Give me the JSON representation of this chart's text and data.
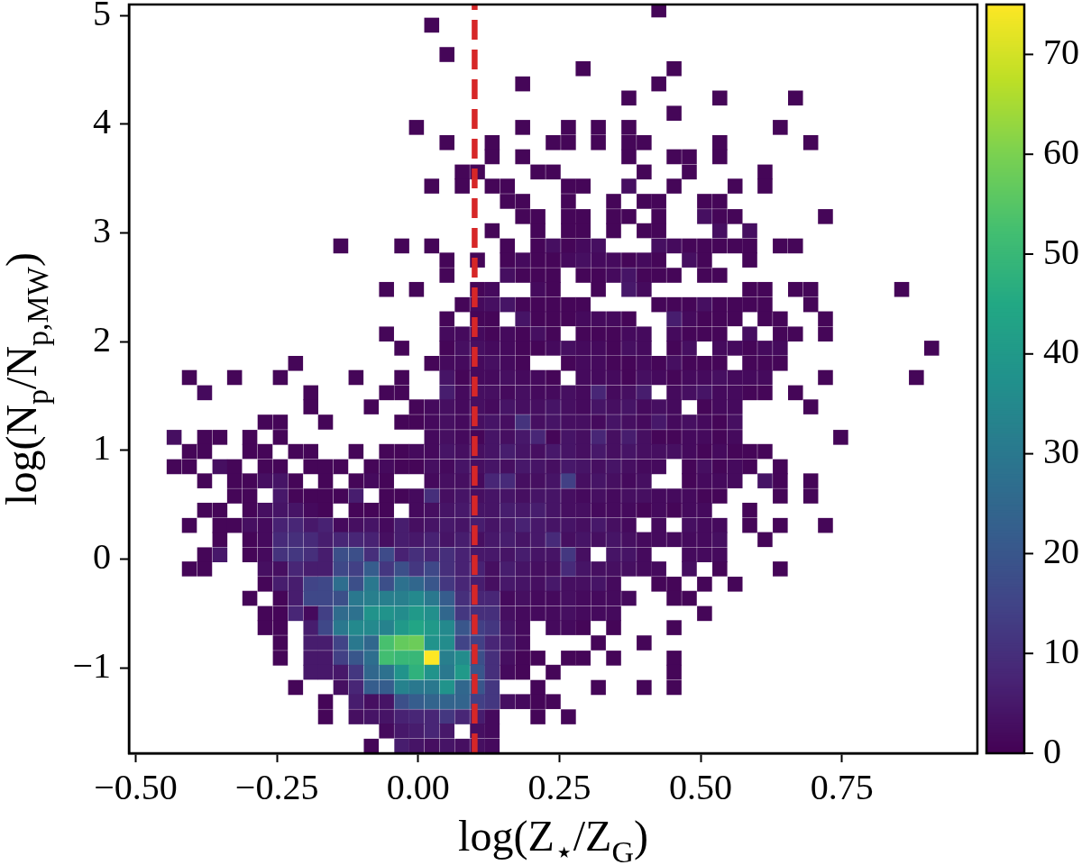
{
  "chart_data": {
    "type": "scatter",
    "marker": "square",
    "xlabel": "log(Z$_{⋆}$/Z$_{G}$)",
    "ylabel": "log(N$_{p}$/N$_{p,MW}$)",
    "xlim": [
      -0.512,
      0.99
    ],
    "ylim": [
      -1.785,
      5.1
    ],
    "xticks": [
      {
        "value": -0.5,
        "label": "−0.50"
      },
      {
        "value": -0.25,
        "label": "−0.25"
      },
      {
        "value": 0,
        "label": "0.00"
      },
      {
        "value": 0.25,
        "label": "0.25"
      },
      {
        "value": 0.5,
        "label": "0.50"
      },
      {
        "value": 0.75,
        "label": "0.75"
      }
    ],
    "yticks": [
      {
        "value": -1,
        "label": "−1"
      },
      0,
      1,
      2,
      3,
      4,
      5
    ],
    "clim": [
      0,
      75
    ],
    "cticks": [
      0,
      10,
      20,
      30,
      40,
      50,
      60,
      70
    ],
    "ref_lines": [
      {
        "axis": "x",
        "value": 0.1,
        "color": "#d62728",
        "line_style": "dashed"
      }
    ],
    "x": [
      0.426,
      0.024,
      0.051,
      0.292,
      0.453,
      0.185,
      0.426,
      0.373,
      0.534,
      0.668,
      0.453,
      -0.003,
      0.185,
      0.266,
      0.319,
      0.373,
      0.641,
      0.051,
      0.131,
      0.239,
      0.266,
      0.319,
      0.373,
      0.4,
      0.534,
      0.695,
      0.131,
      0.185,
      0.373,
      0.453,
      0.48,
      0.534,
      0.078,
      0.105,
      0.212,
      0.239,
      0.4,
      0.48,
      0.614,
      0.024,
      0.078,
      0.131,
      0.158,
      0.266,
      0.292,
      0.373,
      0.453,
      0.561,
      0.614,
      0.158,
      0.185,
      0.266,
      0.346,
      0.4,
      0.426,
      0.507,
      0.534,
      0.185,
      0.212,
      0.266,
      0.292,
      0.346,
      0.373,
      0.426,
      0.507,
      0.534,
      0.561,
      0.721,
      0.131,
      0.212,
      0.266,
      0.292,
      0.346,
      0.4,
      0.426,
      0.534,
      0.587,
      -0.137,
      -0.029,
      0.024,
      0.158,
      0.212,
      0.239,
      0.266,
      0.292,
      0.319,
      0.426,
      0.453,
      0.48,
      0.507,
      0.534,
      0.561,
      0.587,
      0.641,
      0.668,
      0.051,
      0.105,
      0.158,
      0.185,
      0.212,
      0.239,
      0.266,
      0.292,
      0.319,
      0.346,
      0.373,
      0.4,
      0.426,
      0.48,
      0.507,
      0.587,
      0.051,
      0.158,
      0.185,
      0.212,
      0.239,
      0.292,
      0.319,
      0.346,
      0.373,
      0.4,
      0.426,
      0.453,
      0.507,
      0.534,
      -0.056,
      -0.003,
      0.105,
      0.131,
      0.212,
      0.239,
      0.319,
      0.373,
      0.4,
      0.587,
      0.614,
      0.668,
      0.695,
      0.856,
      0.078,
      0.105,
      0.131,
      0.158,
      0.185,
      0.212,
      0.239,
      0.266,
      0.292,
      0.426,
      0.453,
      0.48,
      0.507,
      0.534,
      0.561,
      0.587,
      0.614,
      0.695,
      0.051,
      0.105,
      0.131,
      0.185,
      0.212,
      0.239,
      0.266,
      0.292,
      0.319,
      0.346,
      0.373,
      0.453,
      0.48,
      0.507,
      0.534,
      0.561,
      0.614,
      0.641,
      0.721,
      -0.056,
      0.051,
      0.078,
      0.105,
      0.131,
      0.158,
      0.185,
      0.212,
      0.239,
      0.292,
      0.319,
      0.346,
      0.373,
      0.4,
      0.453,
      0.48,
      0.507,
      0.534,
      0.587,
      0.641,
      0.668,
      0.721,
      -0.029,
      0.051,
      0.078,
      0.105,
      0.131,
      0.158,
      0.185,
      0.212,
      0.239,
      0.266,
      0.292,
      0.319,
      0.346,
      0.373,
      0.4,
      0.453,
      0.48,
      0.534,
      0.561,
      0.587,
      0.614,
      0.641,
      0.909,
      -0.217,
      0.024,
      0.051,
      0.078,
      0.105,
      0.131,
      0.158,
      0.185,
      0.266,
      0.292,
      0.319,
      0.346,
      0.373,
      0.4,
      0.426,
      0.453,
      0.48,
      0.507,
      0.534,
      0.587,
      0.614,
      0.641,
      -0.405,
      -0.325,
      -0.244,
      -0.11,
      -0.029,
      0.051,
      0.078,
      0.105,
      0.131,
      0.158,
      0.185,
      0.212,
      0.239,
      0.292,
      0.319,
      0.346,
      0.373,
      0.4,
      0.426,
      0.453,
      0.48,
      0.507,
      0.534,
      0.561,
      0.587,
      0.614,
      0.721,
      0.882,
      -0.378,
      -0.19,
      -0.056,
      -0.029,
      0.051,
      0.078,
      0.105,
      0.131,
      0.158,
      0.185,
      0.212,
      0.239,
      0.266,
      0.292,
      0.319,
      0.346,
      0.373,
      0.4,
      0.453,
      0.48,
      0.507,
      0.534,
      0.561,
      0.587,
      0.614,
      0.668,
      -0.19,
      -0.083,
      -0.003,
      0.024,
      0.051,
      0.078,
      0.105,
      0.131,
      0.158,
      0.185,
      0.212,
      0.239,
      0.266,
      0.292,
      0.319,
      0.346,
      0.373,
      0.4,
      0.426,
      0.453,
      0.507,
      0.534,
      0.561,
      0.695,
      -0.271,
      -0.244,
      -0.164,
      -0.029,
      -0.003,
      0.024,
      0.051,
      0.078,
      0.105,
      0.131,
      0.158,
      0.185,
      0.212,
      0.239,
      0.266,
      0.292,
      0.319,
      0.346,
      0.373,
      0.4,
      0.426,
      0.453,
      0.48,
      0.507,
      0.534,
      0.561,
      -0.432,
      -0.378,
      -0.351,
      -0.298,
      -0.244,
      0.024,
      0.051,
      0.078,
      0.105,
      0.131,
      0.158,
      0.185,
      0.212,
      0.239,
      0.266,
      0.292,
      0.319,
      0.346,
      0.373,
      0.4,
      0.426,
      0.453,
      0.48,
      0.507,
      0.534,
      0.561,
      0.748,
      -0.405,
      -0.378,
      -0.298,
      -0.271,
      -0.217,
      -0.19,
      -0.11,
      -0.056,
      -0.029,
      -0.003,
      0.024,
      0.051,
      0.078,
      0.105,
      0.131,
      0.158,
      0.185,
      0.212,
      0.239,
      0.266,
      0.292,
      0.319,
      0.346,
      0.373,
      0.4,
      0.426,
      0.453,
      0.48,
      0.507,
      0.534,
      0.561,
      0.587,
      0.614,
      -0.432,
      -0.405,
      -0.351,
      -0.325,
      -0.271,
      -0.244,
      -0.19,
      -0.164,
      -0.137,
      -0.083,
      -0.056,
      -0.029,
      -0.003,
      0.024,
      0.051,
      0.078,
      0.105,
      0.131,
      0.158,
      0.185,
      0.212,
      0.239,
      0.266,
      0.292,
      0.319,
      0.346,
      0.373,
      0.4,
      0.426,
      0.48,
      0.507,
      0.534,
      0.561,
      0.587,
      0.641,
      -0.378,
      -0.325,
      -0.298,
      -0.271,
      -0.244,
      -0.217,
      -0.164,
      -0.11,
      -0.083,
      -0.056,
      0.024,
      0.051,
      0.078,
      0.105,
      0.131,
      0.158,
      0.185,
      0.212,
      0.239,
      0.266,
      0.292,
      0.319,
      0.346,
      0.373,
      0.4,
      0.48,
      0.507,
      0.534,
      0.561,
      0.614,
      0.641,
      0.695,
      -0.325,
      -0.298,
      -0.244,
      -0.217,
      -0.19,
      -0.164,
      -0.137,
      -0.11,
      -0.056,
      -0.029,
      -0.003,
      0.024,
      0.051,
      0.078,
      0.105,
      0.131,
      0.158,
      0.185,
      0.212,
      0.239,
      0.266,
      0.292,
      0.319,
      0.346,
      0.373,
      0.4,
      0.426,
      0.453,
      0.48,
      0.507,
      0.534,
      0.641,
      0.695,
      -0.378,
      -0.351,
      -0.298,
      -0.271,
      -0.244,
      -0.217,
      -0.19,
      -0.164,
      -0.11,
      -0.083,
      -0.056,
      -0.003,
      0.024,
      0.051,
      0.078,
      0.105,
      0.131,
      0.158,
      0.185,
      0.212,
      0.239,
      0.266,
      0.292,
      0.319,
      0.346,
      0.373,
      0.4,
      0.426,
      0.453,
      0.48,
      0.507,
      0.587,
      -0.405,
      -0.351,
      -0.325,
      -0.298,
      -0.271,
      -0.244,
      -0.217,
      -0.19,
      -0.164,
      -0.137,
      -0.11,
      -0.083,
      -0.056,
      -0.029,
      -0.003,
      0.024,
      0.051,
      0.078,
      0.105,
      0.131,
      0.158,
      0.185,
      0.212,
      0.239,
      0.266,
      0.292,
      0.319,
      0.346,
      0.373,
      0.426,
      0.48,
      0.507,
      0.534,
      0.587,
      0.641,
      0.721,
      -0.351,
      -0.298,
      -0.271,
      -0.244,
      -0.217,
      -0.19,
      -0.164,
      -0.137,
      -0.11,
      -0.083,
      -0.056,
      -0.029,
      -0.003,
      0.024,
      0.051,
      0.078,
      0.105,
      0.131,
      0.158,
      0.185,
      0.212,
      0.239,
      0.266,
      0.292,
      0.319,
      0.346,
      0.373,
      0.4,
      0.426,
      0.453,
      0.48,
      0.507,
      0.534,
      0.614,
      -0.378,
      -0.351,
      -0.298,
      -0.271,
      -0.244,
      -0.217,
      -0.19,
      -0.164,
      -0.137,
      -0.11,
      -0.083,
      -0.056,
      -0.029,
      -0.003,
      0.024,
      0.051,
      0.078,
      0.105,
      0.131,
      0.158,
      0.185,
      0.212,
      0.239,
      0.266,
      0.292,
      0.346,
      0.373,
      0.4,
      0.48,
      0.507,
      0.534,
      -0.405,
      -0.378,
      -0.271,
      -0.244,
      -0.217,
      -0.19,
      -0.164,
      -0.137,
      -0.11,
      -0.083,
      -0.056,
      -0.029,
      -0.003,
      0.024,
      0.051,
      0.078,
      0.105,
      0.131,
      0.158,
      0.185,
      0.212,
      0.239,
      0.266,
      0.292,
      0.319,
      0.346,
      0.373,
      0.4,
      0.426,
      0.48,
      0.534,
      0.641,
      -0.271,
      -0.244,
      -0.217,
      -0.19,
      -0.164,
      -0.137,
      -0.11,
      -0.083,
      -0.056,
      -0.029,
      -0.003,
      0.024,
      0.051,
      0.078,
      0.105,
      0.131,
      0.158,
      0.185,
      0.212,
      0.239,
      0.266,
      0.292,
      0.319,
      0.346,
      0.426,
      0.453,
      0.507,
      0.561,
      -0.298,
      -0.244,
      -0.217,
      -0.19,
      -0.164,
      -0.137,
      -0.11,
      -0.083,
      -0.056,
      -0.029,
      -0.003,
      0.024,
      0.051,
      0.078,
      0.105,
      0.131,
      0.158,
      0.185,
      0.212,
      0.239,
      0.266,
      0.292,
      0.319,
      0.346,
      0.373,
      0.453,
      0.48,
      -0.271,
      -0.244,
      -0.217,
      -0.19,
      -0.164,
      -0.137,
      -0.11,
      -0.083,
      -0.056,
      -0.029,
      -0.003,
      0.024,
      0.051,
      0.078,
      0.105,
      0.131,
      0.158,
      0.185,
      0.212,
      0.239,
      0.266,
      0.292,
      0.319,
      0.346,
      0.507,
      -0.271,
      -0.244,
      -0.19,
      -0.164,
      -0.137,
      -0.11,
      -0.083,
      -0.056,
      -0.029,
      -0.003,
      0.024,
      0.051,
      0.078,
      0.105,
      0.131,
      0.158,
      0.185,
      0.239,
      0.266,
      0.292,
      0.346,
      0.453,
      -0.244,
      -0.19,
      -0.164,
      -0.137,
      -0.11,
      -0.083,
      -0.056,
      -0.029,
      -0.003,
      0.024,
      0.051,
      0.078,
      0.105,
      0.131,
      0.158,
      0.185,
      0.319,
      0.4,
      -0.244,
      -0.19,
      -0.164,
      -0.137,
      -0.11,
      -0.083,
      -0.056,
      -0.029,
      -0.003,
      0.024,
      0.051,
      0.078,
      0.105,
      0.131,
      0.158,
      0.185,
      0.212,
      0.266,
      0.292,
      0.346,
      0.453,
      -0.19,
      -0.164,
      -0.137,
      -0.11,
      -0.083,
      -0.056,
      -0.029,
      -0.003,
      0.024,
      0.051,
      0.078,
      0.105,
      0.131,
      0.158,
      0.185,
      0.239,
      0.453,
      -0.217,
      -0.137,
      -0.11,
      -0.083,
      -0.056,
      -0.029,
      -0.003,
      0.024,
      0.051,
      0.078,
      0.105,
      0.131,
      0.212,
      0.319,
      0.4,
      0.453,
      -0.164,
      -0.11,
      -0.083,
      -0.056,
      -0.029,
      -0.003,
      0.024,
      0.051,
      0.078,
      0.105,
      0.131,
      0.158,
      0.185,
      0.212,
      0.239,
      -0.164,
      -0.11,
      -0.083,
      -0.056,
      -0.029,
      -0.003,
      0.024,
      0.051,
      0.078,
      0.105,
      0.131,
      0.212,
      0.266,
      -0.056,
      -0.029,
      -0.003,
      0.024,
      0.051,
      0.105,
      0.131,
      -0.083,
      -0.029,
      -0.003,
      0.024,
      0.051,
      0.078,
      0.105,
      0.131
    ],
    "values": [
      5.05,
      4.91,
      4.64,
      4.51,
      4.51,
      4.37,
      4.37,
      4.24,
      4.24,
      4.24,
      4.1,
      3.97,
      3.97,
      3.97,
      3.97,
      3.97,
      3.97,
      3.83,
      3.83,
      3.83,
      3.83,
      3.83,
      3.83,
      3.83,
      3.83,
      3.83,
      3.7,
      3.7,
      3.7,
      3.7,
      3.7,
      3.7,
      3.56,
      3.56,
      3.56,
      3.56,
      3.56,
      3.56,
      3.56,
      3.43,
      3.43,
      3.43,
      3.43,
      3.43,
      3.43,
      3.43,
      3.43,
      3.43,
      3.43,
      3.29,
      3.29,
      3.29,
      3.29,
      3.29,
      3.29,
      3.29,
      3.29,
      3.15,
      3.15,
      3.15,
      3.15,
      3.15,
      3.15,
      3.15,
      3.15,
      3.15,
      3.15,
      3.15,
      3.02,
      3.02,
      3.02,
      3.02,
      3.02,
      3.02,
      3.02,
      3.02,
      3.02,
      2.88,
      2.88,
      2.88,
      2.88,
      2.88,
      2.88,
      2.88,
      2.88,
      2.88,
      2.88,
      2.88,
      2.88,
      2.88,
      2.88,
      2.88,
      2.88,
      2.88,
      2.88,
      2.75,
      2.75,
      2.75,
      2.75,
      2.75,
      2.75,
      2.75,
      2.75,
      2.75,
      2.75,
      2.75,
      2.75,
      2.75,
      2.75,
      2.75,
      2.75,
      2.61,
      2.61,
      2.61,
      2.61,
      2.61,
      2.61,
      2.61,
      2.61,
      2.61,
      2.61,
      2.61,
      2.61,
      2.61,
      2.61,
      2.48,
      2.48,
      2.48,
      2.48,
      2.48,
      2.48,
      2.48,
      2.48,
      2.48,
      2.48,
      2.48,
      2.48,
      2.48,
      2.48,
      2.34,
      2.34,
      2.34,
      2.34,
      2.34,
      2.34,
      2.34,
      2.34,
      2.34,
      2.34,
      2.34,
      2.34,
      2.34,
      2.34,
      2.34,
      2.34,
      2.34,
      2.34,
      2.21,
      2.21,
      2.21,
      2.21,
      2.21,
      2.21,
      2.21,
      2.21,
      2.21,
      2.21,
      2.21,
      2.21,
      2.21,
      2.21,
      2.21,
      2.21,
      2.21,
      2.21,
      2.21,
      2.07,
      2.07,
      2.07,
      2.07,
      2.07,
      2.07,
      2.07,
      2.07,
      2.07,
      2.07,
      2.07,
      2.07,
      2.07,
      2.07,
      2.07,
      2.07,
      2.07,
      2.07,
      2.07,
      2.07,
      2.07,
      2.07,
      1.94,
      1.94,
      1.94,
      1.94,
      1.94,
      1.94,
      1.94,
      1.94,
      1.94,
      1.94,
      1.94,
      1.94,
      1.94,
      1.94,
      1.94,
      1.94,
      1.94,
      1.94,
      1.94,
      1.94,
      1.94,
      1.94,
      1.94,
      1.8,
      1.8,
      1.8,
      1.8,
      1.8,
      1.8,
      1.8,
      1.8,
      1.8,
      1.8,
      1.8,
      1.8,
      1.8,
      1.8,
      1.8,
      1.8,
      1.8,
      1.8,
      1.8,
      1.8,
      1.8,
      1.8,
      1.67,
      1.67,
      1.67,
      1.67,
      1.67,
      1.67,
      1.67,
      1.67,
      1.67,
      1.67,
      1.67,
      1.67,
      1.67,
      1.67,
      1.67,
      1.67,
      1.67,
      1.67,
      1.67,
      1.67,
      1.67,
      1.67,
      1.67,
      1.67,
      1.67,
      1.67,
      1.67,
      1.67,
      1.53,
      1.53,
      1.53,
      1.53,
      1.53,
      1.53,
      1.53,
      1.53,
      1.53,
      1.53,
      1.53,
      1.53,
      1.53,
      1.53,
      1.53,
      1.53,
      1.53,
      1.53,
      1.53,
      1.53,
      1.53,
      1.53,
      1.53,
      1.53,
      1.53,
      1.53,
      1.4,
      1.4,
      1.4,
      1.4,
      1.4,
      1.4,
      1.4,
      1.4,
      1.4,
      1.4,
      1.4,
      1.4,
      1.4,
      1.4,
      1.4,
      1.4,
      1.4,
      1.4,
      1.4,
      1.4,
      1.4,
      1.4,
      1.4,
      1.4,
      1.26,
      1.26,
      1.26,
      1.26,
      1.26,
      1.26,
      1.26,
      1.26,
      1.26,
      1.26,
      1.26,
      1.26,
      1.26,
      1.26,
      1.26,
      1.26,
      1.26,
      1.26,
      1.26,
      1.26,
      1.26,
      1.26,
      1.26,
      1.26,
      1.26,
      1.26,
      1.12,
      1.12,
      1.12,
      1.12,
      1.12,
      1.12,
      1.12,
      1.12,
      1.12,
      1.12,
      1.12,
      1.12,
      1.12,
      1.12,
      1.12,
      1.12,
      1.12,
      1.12,
      1.12,
      1.12,
      1.12,
      1.12,
      1.12,
      1.12,
      1.12,
      1.12,
      1.12,
      0.99,
      0.99,
      0.99,
      0.99,
      0.99,
      0.99,
      0.99,
      0.99,
      0.99,
      0.99,
      0.99,
      0.99,
      0.99,
      0.99,
      0.99,
      0.99,
      0.99,
      0.99,
      0.99,
      0.99,
      0.99,
      0.99,
      0.99,
      0.99,
      0.99,
      0.99,
      0.99,
      0.99,
      0.99,
      0.99,
      0.99,
      0.99,
      0.99,
      0.85,
      0.85,
      0.85,
      0.85,
      0.85,
      0.85,
      0.85,
      0.85,
      0.85,
      0.85,
      0.85,
      0.85,
      0.85,
      0.85,
      0.85,
      0.85,
      0.85,
      0.85,
      0.85,
      0.85,
      0.85,
      0.85,
      0.85,
      0.85,
      0.85,
      0.85,
      0.85,
      0.85,
      0.85,
      0.85,
      0.85,
      0.85,
      0.85,
      0.85,
      0.85,
      0.72,
      0.72,
      0.72,
      0.72,
      0.72,
      0.72,
      0.72,
      0.72,
      0.72,
      0.72,
      0.72,
      0.72,
      0.72,
      0.72,
      0.72,
      0.72,
      0.72,
      0.72,
      0.72,
      0.72,
      0.72,
      0.72,
      0.72,
      0.72,
      0.72,
      0.72,
      0.72,
      0.72,
      0.72,
      0.72,
      0.72,
      0.72,
      0.58,
      0.58,
      0.58,
      0.58,
      0.58,
      0.58,
      0.58,
      0.58,
      0.58,
      0.58,
      0.58,
      0.58,
      0.58,
      0.58,
      0.58,
      0.58,
      0.58,
      0.58,
      0.58,
      0.58,
      0.58,
      0.58,
      0.58,
      0.58,
      0.58,
      0.58,
      0.58,
      0.58,
      0.58,
      0.58,
      0.58,
      0.58,
      0.58,
      0.45,
      0.45,
      0.45,
      0.45,
      0.45,
      0.45,
      0.45,
      0.45,
      0.45,
      0.45,
      0.45,
      0.45,
      0.45,
      0.45,
      0.45,
      0.45,
      0.45,
      0.45,
      0.45,
      0.45,
      0.45,
      0.45,
      0.45,
      0.45,
      0.45,
      0.45,
      0.45,
      0.45,
      0.45,
      0.45,
      0.45,
      0.45,
      0.31,
      0.31,
      0.31,
      0.31,
      0.31,
      0.31,
      0.31,
      0.31,
      0.31,
      0.31,
      0.31,
      0.31,
      0.31,
      0.31,
      0.31,
      0.31,
      0.31,
      0.31,
      0.31,
      0.31,
      0.31,
      0.31,
      0.31,
      0.31,
      0.31,
      0.31,
      0.31,
      0.31,
      0.31,
      0.31,
      0.31,
      0.31,
      0.31,
      0.31,
      0.31,
      0.31,
      0.18,
      0.18,
      0.18,
      0.18,
      0.18,
      0.18,
      0.18,
      0.18,
      0.18,
      0.18,
      0.18,
      0.18,
      0.18,
      0.18,
      0.18,
      0.18,
      0.18,
      0.18,
      0.18,
      0.18,
      0.18,
      0.18,
      0.18,
      0.18,
      0.18,
      0.18,
      0.18,
      0.18,
      0.18,
      0.18,
      0.18,
      0.18,
      0.18,
      0.18,
      0.04,
      0.04,
      0.04,
      0.04,
      0.04,
      0.04,
      0.04,
      0.04,
      0.04,
      0.04,
      0.04,
      0.04,
      0.04,
      0.04,
      0.04,
      0.04,
      0.04,
      0.04,
      0.04,
      0.04,
      0.04,
      0.04,
      0.04,
      0.04,
      0.04,
      0.04,
      0.04,
      0.04,
      0.04,
      0.04,
      0.04,
      -0.09,
      -0.09,
      -0.09,
      -0.09,
      -0.09,
      -0.09,
      -0.09,
      -0.09,
      -0.09,
      -0.09,
      -0.09,
      -0.09,
      -0.09,
      -0.09,
      -0.09,
      -0.09,
      -0.09,
      -0.09,
      -0.09,
      -0.09,
      -0.09,
      -0.09,
      -0.09,
      -0.09,
      -0.09,
      -0.09,
      -0.09,
      -0.09,
      -0.09,
      -0.09,
      -0.09,
      -0.09,
      -0.23,
      -0.23,
      -0.23,
      -0.23,
      -0.23,
      -0.23,
      -0.23,
      -0.23,
      -0.23,
      -0.23,
      -0.23,
      -0.23,
      -0.23,
      -0.23,
      -0.23,
      -0.23,
      -0.23,
      -0.23,
      -0.23,
      -0.23,
      -0.23,
      -0.23,
      -0.23,
      -0.23,
      -0.23,
      -0.23,
      -0.23,
      -0.23,
      -0.36,
      -0.36,
      -0.36,
      -0.36,
      -0.36,
      -0.36,
      -0.36,
      -0.36,
      -0.36,
      -0.36,
      -0.36,
      -0.36,
      -0.36,
      -0.36,
      -0.36,
      -0.36,
      -0.36,
      -0.36,
      -0.36,
      -0.36,
      -0.36,
      -0.36,
      -0.36,
      -0.36,
      -0.36,
      -0.36,
      -0.36,
      -0.5,
      -0.5,
      -0.5,
      -0.5,
      -0.5,
      -0.5,
      -0.5,
      -0.5,
      -0.5,
      -0.5,
      -0.5,
      -0.5,
      -0.5,
      -0.5,
      -0.5,
      -0.5,
      -0.5,
      -0.5,
      -0.5,
      -0.5,
      -0.5,
      -0.5,
      -0.5,
      -0.5,
      -0.5,
      -0.63,
      -0.63,
      -0.63,
      -0.63,
      -0.63,
      -0.63,
      -0.63,
      -0.63,
      -0.63,
      -0.63,
      -0.63,
      -0.63,
      -0.63,
      -0.63,
      -0.63,
      -0.63,
      -0.63,
      -0.63,
      -0.63,
      -0.63,
      -0.63,
      -0.63,
      -0.77,
      -0.77,
      -0.77,
      -0.77,
      -0.77,
      -0.77,
      -0.77,
      -0.77,
      -0.77,
      -0.77,
      -0.77,
      -0.77,
      -0.77,
      -0.77,
      -0.77,
      -0.77,
      -0.77,
      -0.77,
      -0.91,
      -0.91,
      -0.91,
      -0.91,
      -0.91,
      -0.91,
      -0.91,
      -0.91,
      -0.91,
      -0.91,
      -0.91,
      -0.91,
      -0.91,
      -0.91,
      -0.91,
      -0.91,
      -0.91,
      -0.91,
      -0.91,
      -0.91,
      -0.91,
      -1.04,
      -1.04,
      -1.04,
      -1.04,
      -1.04,
      -1.04,
      -1.04,
      -1.04,
      -1.04,
      -1.04,
      -1.04,
      -1.04,
      -1.04,
      -1.04,
      -1.04,
      -1.04,
      -1.04,
      -1.18,
      -1.18,
      -1.18,
      -1.18,
      -1.18,
      -1.18,
      -1.18,
      -1.18,
      -1.18,
      -1.18,
      -1.18,
      -1.18,
      -1.18,
      -1.18,
      -1.18,
      -1.18,
      -1.31,
      -1.31,
      -1.31,
      -1.31,
      -1.31,
      -1.31,
      -1.31,
      -1.31,
      -1.31,
      -1.31,
      -1.31,
      -1.31,
      -1.31,
      -1.31,
      -1.31,
      -1.45,
      -1.45,
      -1.45,
      -1.45,
      -1.45,
      -1.45,
      -1.45,
      -1.45,
      -1.45,
      -1.45,
      -1.45,
      -1.45,
      -1.45,
      -1.58,
      -1.58,
      -1.58,
      -1.58,
      -1.58,
      -1.58,
      -1.58,
      -1.72,
      -1.72,
      -1.72,
      -1.72,
      -1.72,
      -1.72,
      -1.72,
      -1.72
    ],
    "cvalues": [
      1,
      1,
      1,
      1,
      1,
      1,
      1,
      1,
      1,
      1,
      1,
      1,
      1,
      1,
      1,
      1,
      1,
      1,
      1,
      1,
      1,
      1,
      1,
      1,
      1,
      1,
      1,
      1,
      1,
      1,
      1,
      1,
      1,
      1,
      1,
      1,
      1,
      1,
      1,
      1,
      1,
      1,
      1,
      1,
      1,
      3,
      1,
      1,
      1,
      1,
      1,
      1,
      1,
      1,
      1,
      1,
      1,
      1,
      1,
      1,
      1,
      1,
      1,
      1,
      3,
      1,
      1,
      1,
      1,
      1,
      1,
      1,
      1,
      1,
      1,
      3,
      3,
      1,
      1,
      1,
      1,
      1,
      3,
      1,
      2,
      3,
      3,
      2,
      1,
      1,
      1,
      1,
      1,
      1,
      1,
      1,
      1,
      1,
      2,
      1,
      1,
      2,
      3,
      2,
      2,
      1,
      2,
      1,
      3,
      1,
      1,
      1,
      3,
      1,
      1,
      1,
      1,
      1,
      2,
      4,
      1,
      1,
      1,
      1,
      1,
      1,
      1,
      1,
      2,
      2,
      1,
      1,
      5,
      2,
      1,
      1,
      1,
      1,
      1,
      1,
      2,
      3,
      4,
      1,
      1,
      1,
      1,
      1,
      1,
      1,
      1,
      3,
      1,
      1,
      1,
      1,
      1,
      1,
      1,
      1,
      4,
      1,
      1,
      1,
      2,
      2,
      2,
      1,
      6,
      2,
      1,
      1,
      1,
      1,
      1,
      1,
      1,
      2,
      2,
      2,
      1,
      2,
      1,
      3,
      1,
      1,
      1,
      1,
      2,
      2,
      2,
      1,
      1,
      1,
      3,
      1,
      1,
      1,
      1,
      1,
      3,
      3,
      2,
      2,
      1,
      1,
      2,
      3,
      2,
      2,
      1,
      3,
      2,
      1,
      3,
      2,
      2,
      1,
      2,
      2,
      1,
      1,
      1,
      2,
      2,
      2,
      3,
      2,
      1,
      1,
      2,
      2,
      1,
      1,
      2,
      1,
      3,
      1,
      1,
      1,
      1,
      1,
      1,
      1,
      1,
      1,
      1,
      1,
      4,
      1,
      2,
      2,
      3,
      2,
      2,
      1,
      2,
      2,
      2,
      1,
      3,
      2,
      1,
      2,
      2,
      3,
      2,
      2,
      2,
      1,
      1,
      2,
      1,
      1,
      1,
      6,
      2,
      3,
      3,
      2,
      3,
      2,
      2,
      3,
      2,
      8,
      2,
      3,
      6,
      2,
      3,
      4,
      2,
      2,
      1,
      1,
      1,
      1,
      1,
      1,
      2,
      3,
      2,
      3,
      2,
      4,
      3,
      3,
      4,
      3,
      2,
      4,
      3,
      4,
      2,
      3,
      2,
      1,
      2,
      2,
      1,
      1,
      1,
      1,
      1,
      1,
      2,
      3,
      2,
      3,
      4,
      3,
      11,
      3,
      4,
      3,
      3,
      2,
      4,
      3,
      2,
      5,
      2,
      3,
      2,
      1,
      3,
      3,
      1,
      1,
      1,
      1,
      2,
      3,
      2,
      1,
      4,
      3,
      5,
      8,
      1,
      4,
      3,
      8,
      3,
      6,
      3,
      1,
      1,
      2,
      2,
      1,
      2,
      1,
      1,
      1,
      1,
      1,
      1,
      1,
      1,
      1,
      1,
      2,
      2,
      4,
      3,
      3,
      4,
      6,
      4,
      3,
      5,
      4,
      3,
      5,
      3,
      4,
      3,
      3,
      3,
      2,
      1,
      2,
      1,
      1,
      1,
      1,
      1,
      3,
      1,
      1,
      1,
      1,
      1,
      1,
      1,
      2,
      1,
      1,
      3,
      2,
      4,
      3,
      4,
      3,
      5,
      4,
      3,
      5,
      4,
      3,
      4,
      3,
      2,
      2,
      1,
      3,
      1,
      2,
      1,
      1,
      1,
      1,
      1,
      3,
      4,
      1,
      1,
      1,
      2,
      1,
      2,
      3,
      3,
      2,
      8,
      9,
      3,
      3,
      4,
      14,
      3,
      4,
      3,
      2,
      3,
      1,
      2,
      2,
      2,
      4,
      1,
      1,
      1,
      1,
      5,
      1,
      1,
      1,
      1,
      6,
      1,
      1,
      2,
      10,
      3,
      4,
      3,
      4,
      4,
      3,
      4,
      4,
      3,
      2,
      3,
      2,
      3,
      3,
      2,
      2,
      2,
      1,
      1,
      1,
      1,
      1,
      1,
      1,
      3,
      4,
      4,
      2,
      1,
      1,
      1,
      1,
      2,
      3,
      4,
      5,
      4,
      4,
      6,
      5,
      6,
      4,
      3,
      3,
      2,
      2,
      2,
      1,
      2,
      1,
      2,
      2,
      1,
      1,
      1,
      1,
      3,
      2,
      7,
      8,
      5,
      7,
      2,
      3,
      4,
      2,
      6,
      3,
      4,
      5,
      4,
      6,
      4,
      5,
      7,
      5,
      4,
      4,
      3,
      5,
      3,
      2,
      2,
      3,
      2,
      2,
      1,
      1,
      1,
      1,
      1,
      2,
      9,
      10,
      9,
      6,
      8,
      8,
      7,
      3,
      6,
      5,
      7,
      4,
      6,
      3,
      5,
      6,
      4,
      5,
      9,
      3,
      4,
      3,
      4,
      3,
      2,
      2,
      2,
      2,
      2,
      3,
      1,
      1,
      5,
      1,
      2,
      11,
      12,
      10,
      6,
      18,
      18,
      10,
      17,
      7,
      10,
      8,
      10,
      7,
      5,
      5,
      4,
      6,
      4,
      4,
      12,
      3,
      4,
      4,
      2,
      2,
      2,
      2,
      1,
      1,
      3,
      3,
      8,
      6,
      6,
      16,
      14,
      22,
      12,
      18,
      12,
      16,
      10,
      7,
      7,
      3,
      6,
      4,
      3,
      3,
      9,
      4,
      3,
      3,
      3,
      2,
      2,
      3,
      1,
      1,
      1,
      6,
      6,
      15,
      16,
      27,
      18,
      30,
      18,
      28,
      25,
      20,
      12,
      8,
      6,
      3,
      5,
      4,
      3,
      5,
      3,
      3,
      4,
      2,
      1,
      1,
      1,
      1,
      1,
      1,
      6,
      16,
      16,
      18,
      30,
      32,
      32,
      32,
      35,
      30,
      22,
      10,
      8,
      8,
      2,
      3,
      2,
      2,
      3,
      2,
      2,
      2,
      2,
      1,
      1,
      1,
      1,
      8,
      2,
      14,
      26,
      28,
      38,
      38,
      36,
      40,
      37,
      25,
      12,
      10,
      10,
      3,
      2,
      2,
      2,
      3,
      2,
      2,
      2,
      1,
      1,
      1,
      6,
      16,
      30,
      35,
      35,
      33,
      40,
      44,
      40,
      35,
      20,
      14,
      12,
      4,
      2,
      2,
      2,
      1,
      1,
      1,
      1,
      6,
      6,
      15,
      30,
      25,
      53,
      57,
      58,
      38,
      36,
      15,
      14,
      8,
      5,
      2,
      1,
      1,
      1,
      5,
      5,
      14,
      20,
      27,
      52,
      50,
      50,
      75,
      32,
      36,
      18,
      10,
      3,
      1,
      1,
      1,
      1,
      1,
      1,
      5,
      5,
      5,
      12,
      25,
      28,
      38,
      48,
      38,
      30,
      40,
      20,
      10,
      2,
      1,
      1,
      1,
      1,
      3,
      8,
      22,
      22,
      33,
      30,
      30,
      38,
      25,
      20,
      12,
      1,
      1,
      1,
      1,
      1,
      6,
      3,
      4,
      18,
      22,
      24,
      24,
      24,
      14,
      12,
      3,
      2,
      1,
      1,
      1,
      3,
      4,
      4,
      7,
      8,
      8,
      12,
      8,
      6,
      2,
      1,
      1,
      2,
      5,
      6,
      8,
      5,
      3,
      2,
      1,
      6,
      4,
      3,
      4,
      3,
      3,
      2
    ]
  }
}
